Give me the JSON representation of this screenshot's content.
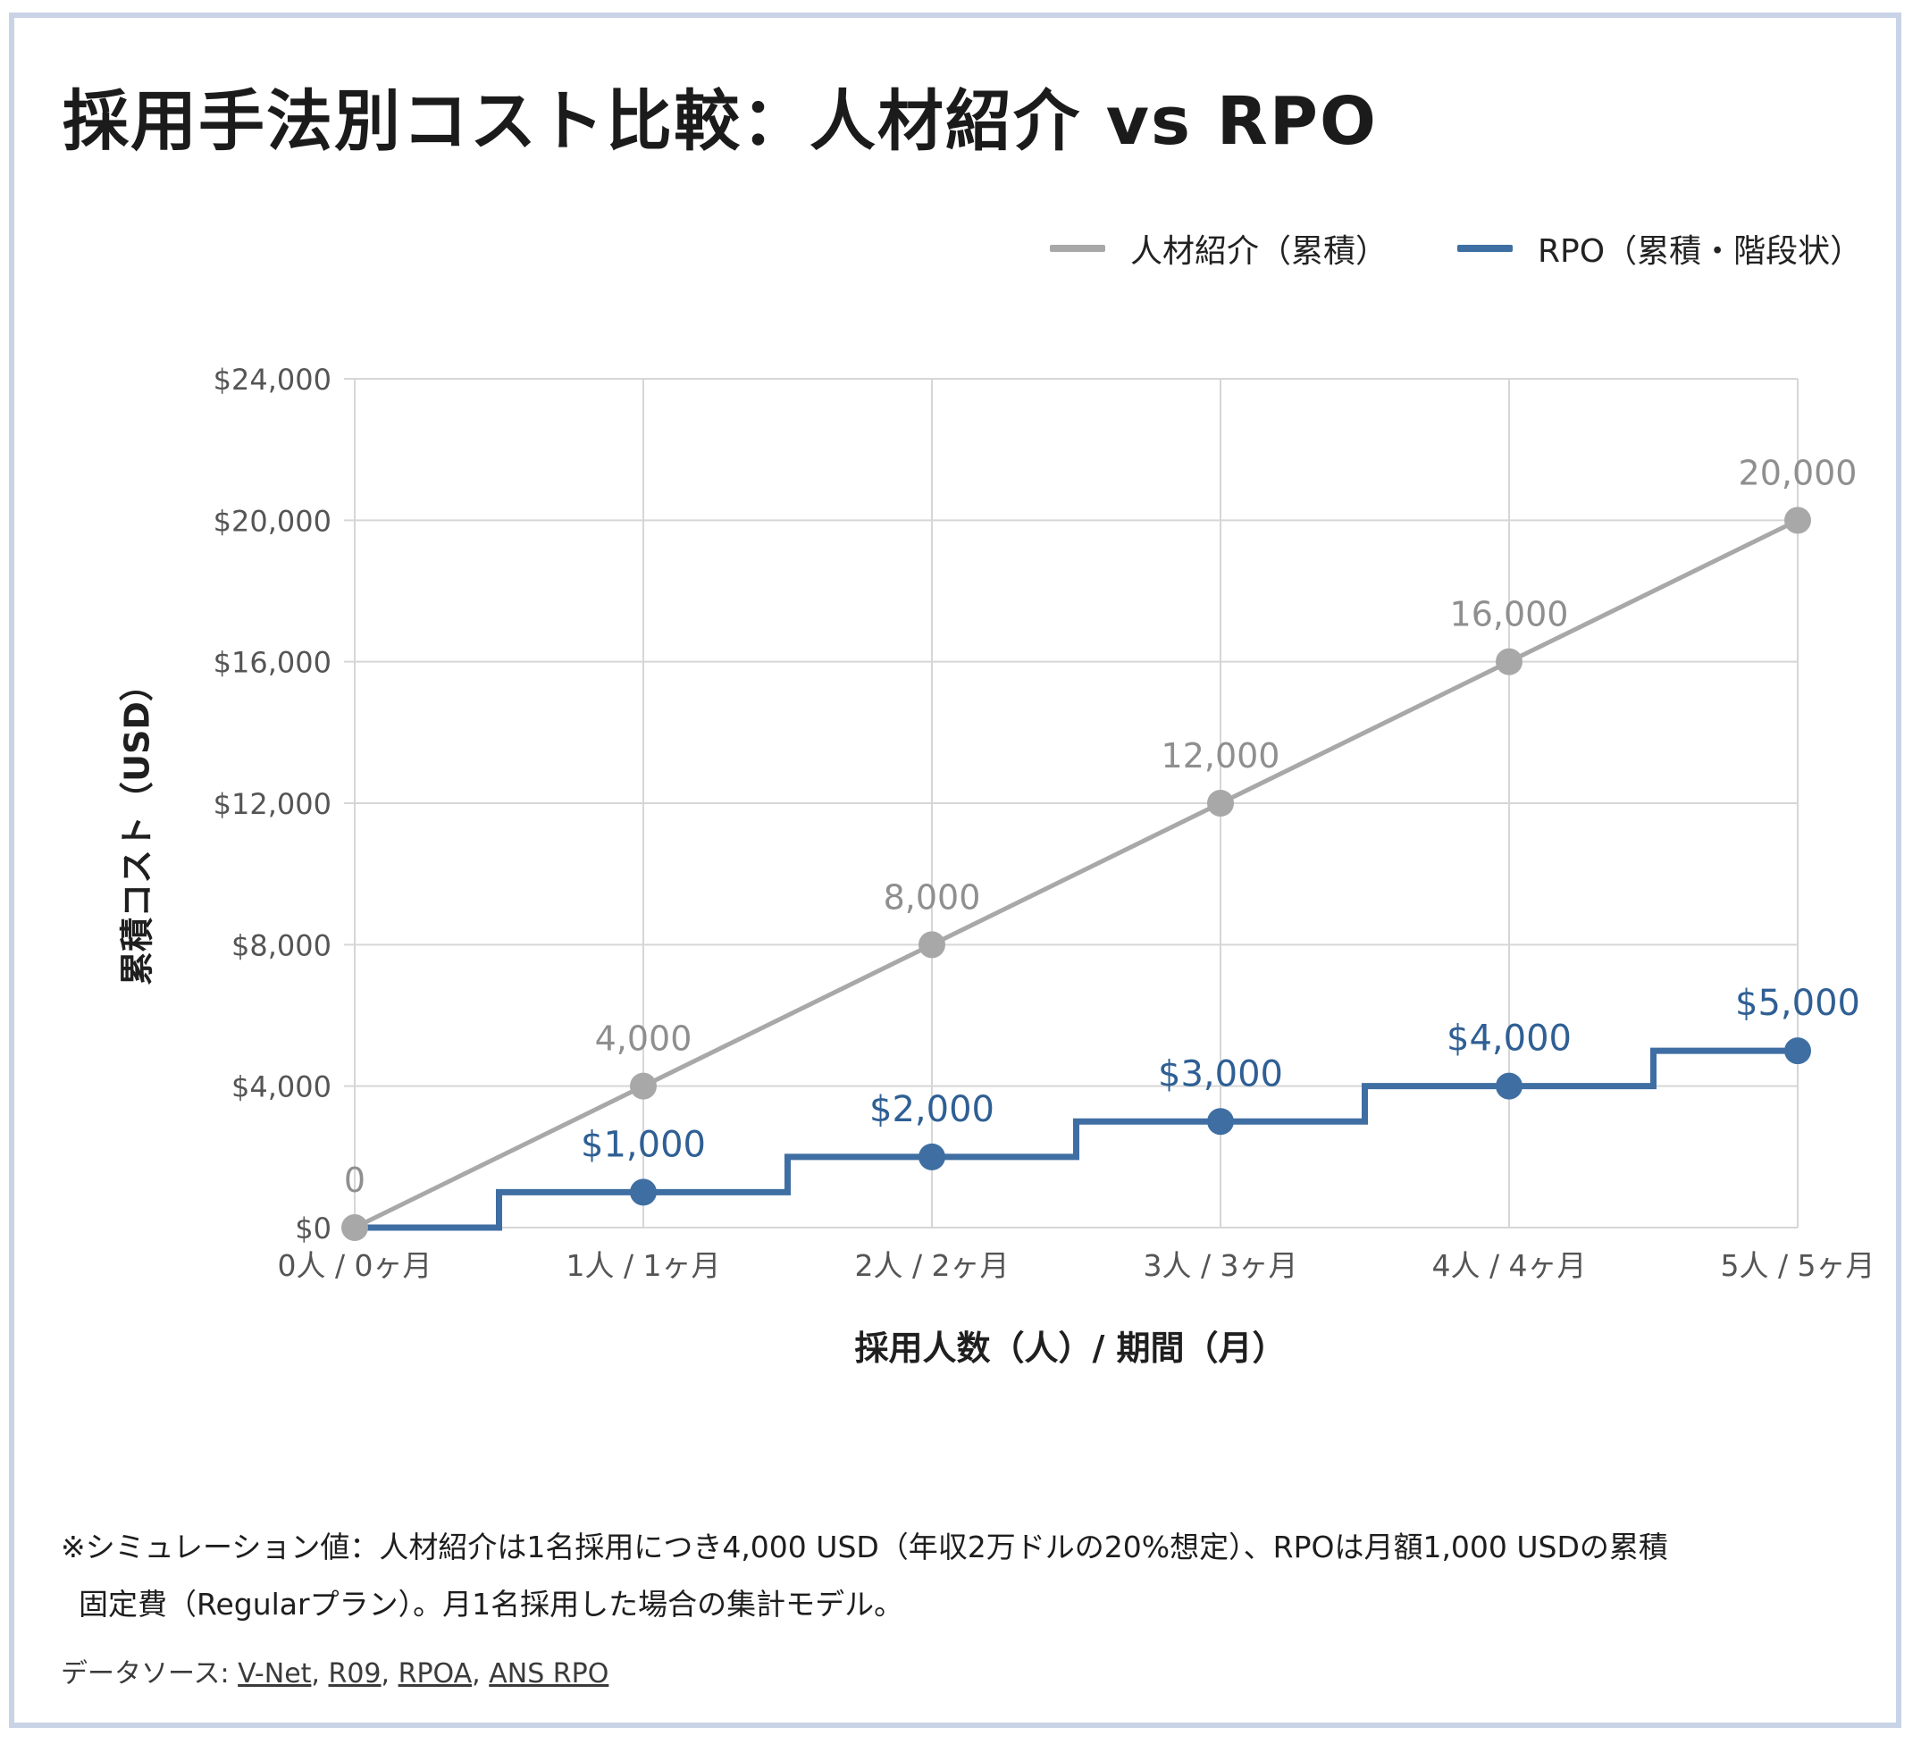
{
  "title": "採用手法別コスト比較：人材紹介 vs RPO",
  "legend": [
    {
      "label": "人材紹介（累積）",
      "color": "#a8a8a8"
    },
    {
      "label": "RPO（累積・階段状）",
      "color": "#3f6ea3"
    }
  ],
  "footnote": {
    "line1": "※シミュレーション値：人材紹介は1名採用につき4,000 USD（年収2万ドルの20%想定）、RPOは月額1,000 USDの累積",
    "line2": "固定費（Regularプラン）。月1名採用した場合の集計モデル。"
  },
  "source": {
    "prefix": "データソース: ",
    "links": [
      "V-Net",
      "R09",
      "RPOA",
      "ANS RPO"
    ]
  },
  "chart_data": {
    "type": "line",
    "xlabel": "採用人数（人）/ 期間（月）",
    "ylabel": "累積コスト（USD）",
    "categories": [
      "0人 / 0ヶ月",
      "1人 / 1ヶ月",
      "2人 / 2ヶ月",
      "3人 / 3ヶ月",
      "4人 / 4ヶ月",
      "5人 / 5ヶ月"
    ],
    "ylim": [
      0,
      24000
    ],
    "yticks": [
      "$0",
      "$4,000",
      "$8,000",
      "$12,000",
      "$16,000",
      "$20,000",
      "$24,000"
    ],
    "grid": true,
    "legend_position": "top-right",
    "series": [
      {
        "name": "人材紹介（累積）",
        "style": "linear",
        "color": "#a8a8a8",
        "values": [
          0,
          4000,
          8000,
          12000,
          16000,
          20000
        ],
        "labels": [
          "0",
          "4,000",
          "8,000",
          "12,000",
          "16,000",
          "20,000"
        ]
      },
      {
        "name": "RPO（累積・階段状）",
        "style": "step",
        "color": "#3f6ea3",
        "values": [
          0,
          1000,
          2000,
          3000,
          4000,
          5000
        ],
        "labels": [
          "",
          "$1,000",
          "$2,000",
          "$3,000",
          "$4,000",
          "$5,000"
        ]
      }
    ]
  }
}
